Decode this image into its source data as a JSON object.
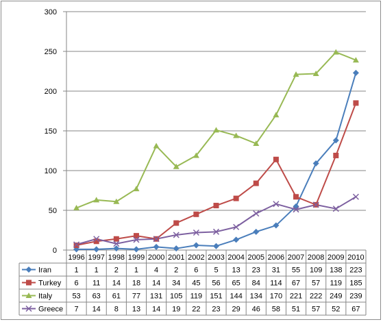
{
  "chart_data": {
    "type": "line",
    "title": "",
    "xlabel": "",
    "ylabel": "",
    "x": [
      "1996",
      "1997",
      "1998",
      "1999",
      "2000",
      "2001",
      "2002",
      "2003",
      "2004",
      "2005",
      "2006",
      "2007",
      "2008",
      "2009",
      "2010"
    ],
    "ylim": [
      0,
      300
    ],
    "yticks": [
      0,
      50,
      100,
      150,
      200,
      250,
      300
    ],
    "grid": "horizontal",
    "legend": "bottom-table",
    "series": [
      {
        "name": "Iran",
        "color": "#4a7ebb",
        "marker": "diamond",
        "values": [
          1,
          1,
          2,
          1,
          4,
          2,
          6,
          5,
          13,
          23,
          31,
          55,
          109,
          138,
          223
        ]
      },
      {
        "name": "Turkey",
        "color": "#be4b48",
        "marker": "square",
        "values": [
          6,
          11,
          14,
          18,
          14,
          34,
          45,
          56,
          65,
          84,
          114,
          67,
          57,
          119,
          185
        ]
      },
      {
        "name": "Italy",
        "color": "#98b954",
        "marker": "triangle",
        "values": [
          53,
          63,
          61,
          77,
          131,
          105,
          119,
          151,
          144,
          134,
          170,
          221,
          222,
          249,
          239
        ]
      },
      {
        "name": "Greece",
        "color": "#7d60a0",
        "marker": "x",
        "values": [
          7,
          14,
          8,
          13,
          14,
          19,
          22,
          23,
          29,
          46,
          58,
          51,
          57,
          52,
          67
        ]
      }
    ]
  }
}
